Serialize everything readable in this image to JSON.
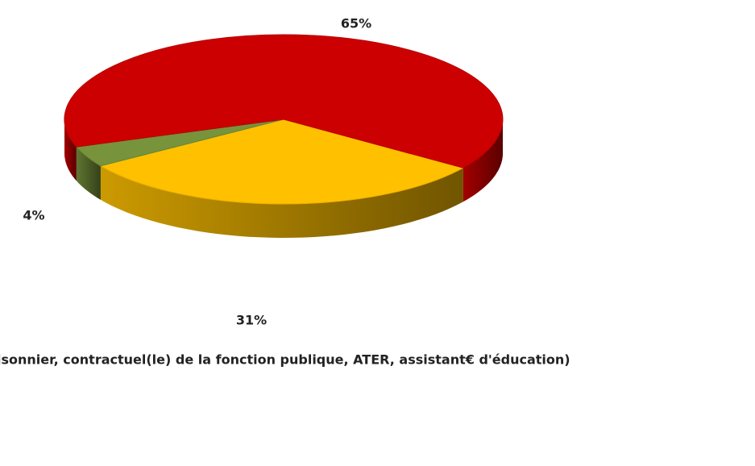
{
  "chart_data": {
    "type": "pie3d",
    "categories": [
      null,
      null,
      null
    ],
    "values": [
      31,
      4,
      65
    ],
    "value_labels": [
      "31%",
      "4%",
      "65%"
    ],
    "colors": [
      "#ffc000",
      "#77933c",
      "#cc0000"
    ],
    "legend_text": "isonnier, contractuel(le) de la fonction publique, ATER, assistant€ d'éducation)"
  }
}
